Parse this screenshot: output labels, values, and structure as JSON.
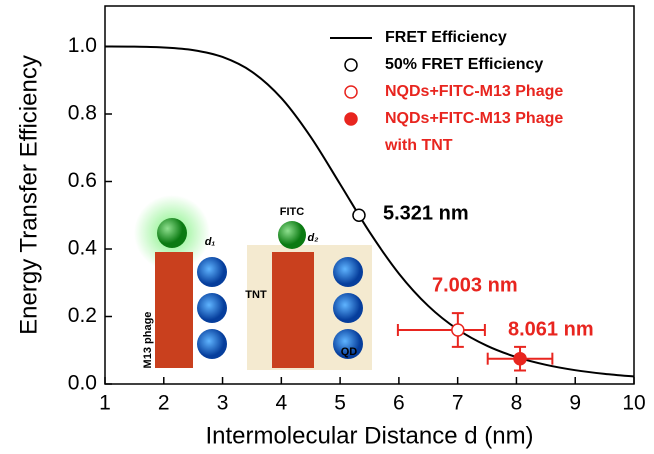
{
  "chart_data": {
    "type": "line",
    "xlabel": "Intermolecular Distance d (nm)",
    "ylabel": "Energy Transfer Efficiency",
    "xlim": [
      1,
      10
    ],
    "ylim": [
      0,
      1.12
    ],
    "xticks": [
      1,
      2,
      3,
      4,
      5,
      6,
      7,
      8,
      9,
      10
    ],
    "yticks": [
      {
        "value": 0,
        "label": "0.0"
      },
      0.2,
      0.4,
      0.6,
      0.8,
      {
        "value": 1,
        "label": "1.0"
      }
    ],
    "series": [
      {
        "name": "FRET Efficiency",
        "type": "line",
        "color": "#000000",
        "x": [
          1,
          1.5,
          2,
          2.5,
          3,
          3.5,
          4,
          4.5,
          5,
          5.5,
          6,
          6.5,
          7,
          7.5,
          8,
          8.5,
          9,
          9.5,
          10
        ],
        "values": [
          1.0,
          0.9995,
          0.9972,
          0.9894,
          0.9689,
          0.9251,
          0.8471,
          0.7321,
          0.5923,
          0.4505,
          0.3272,
          0.2313,
          0.1617,
          0.1131,
          0.0797,
          0.0568,
          0.0409,
          0.03,
          0.0222
        ]
      },
      {
        "name": "50% FRET Efficiency",
        "type": "scatter",
        "color": "#000000",
        "marker": "open",
        "x": [
          5.321
        ],
        "values": [
          0.5
        ]
      },
      {
        "name": "NQDs+FITC-M13 Phage",
        "type": "scatter",
        "color": "#e8251f",
        "marker": "open",
        "x": [
          7.003
        ],
        "values": [
          0.16
        ],
        "xerr": [
          [
            1.02,
            0.46
          ]
        ],
        "yerr": [
          0.05
        ]
      },
      {
        "name": "NQDs+FITC-M13 Phage with TNT",
        "type": "scatter",
        "color": "#e8251f",
        "marker": "filled",
        "x": [
          8.061
        ],
        "values": [
          0.075
        ],
        "xerr": [
          [
            0.55,
            0.55
          ]
        ],
        "yerr": [
          0.035
        ]
      }
    ],
    "annotations": [
      {
        "text": "5.321 nm",
        "color": "#000000"
      },
      {
        "text": "7.003 nm",
        "color": "#e8251f"
      },
      {
        "text": "8.061 nm",
        "color": "#e8251f"
      }
    ],
    "inset_labels": [
      "d₁",
      "M13 phage",
      "FITC",
      "d₂",
      "TNT",
      "QD"
    ]
  }
}
